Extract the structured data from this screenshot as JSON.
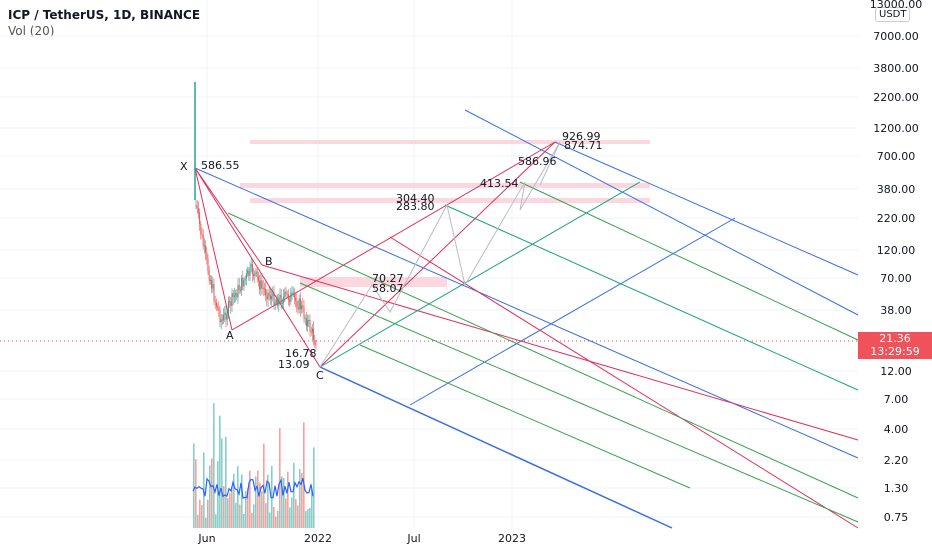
{
  "header": {
    "title": "ICP / TetherUS, 1D, BINANCE",
    "indicator": "Vol (20)"
  },
  "axis": {
    "currency_badge": "USDT",
    "y_ticks": [
      "13000.00",
      "7000.00",
      "3800.00",
      "2200.00",
      "1200.00",
      "700.00",
      "380.00",
      "220.00",
      "120.00",
      "70.00",
      "38.00",
      "12.00",
      "7.00",
      "4.00",
      "2.20",
      "1.30",
      "0.75"
    ],
    "x_ticks": [
      "Jun",
      "2022",
      "Jul",
      "2023"
    ]
  },
  "price_box": {
    "price": "21.36",
    "countdown": "13:29:59"
  },
  "colors": {
    "price_line": "#e04050",
    "pink_fork": "#e0305a",
    "blue_fork": "#3a6fe0",
    "green_fork": "#3aa050",
    "teal_fork": "#1aa080",
    "up_candle": "#26a69a",
    "down_candle": "#ef5350",
    "zone": "#fbd0da",
    "volume_ma": "#2962ff"
  },
  "chart_data": {
    "type": "candlestick-with-harmonic-pattern",
    "symbol": "ICP / TetherUS, 1D, BINANCE",
    "y_scale": "log",
    "y_range": [
      0.75,
      13000
    ],
    "x_ticks": [
      "Jun",
      "2022",
      "Jul",
      "2023"
    ],
    "pattern_points": [
      {
        "label": "X",
        "value": "586.55"
      },
      {
        "label": "A",
        "value": ""
      },
      {
        "label": "B",
        "value": ""
      },
      {
        "label": "C",
        "value": ""
      }
    ],
    "projection_levels": [
      "926.99",
      "874.71",
      "586.96",
      "413.54",
      "304.40",
      "283.80",
      "70.27",
      "58.07",
      "16.78",
      "13.09"
    ],
    "last_price": 21.36,
    "indicator": "Vol (20)"
  }
}
